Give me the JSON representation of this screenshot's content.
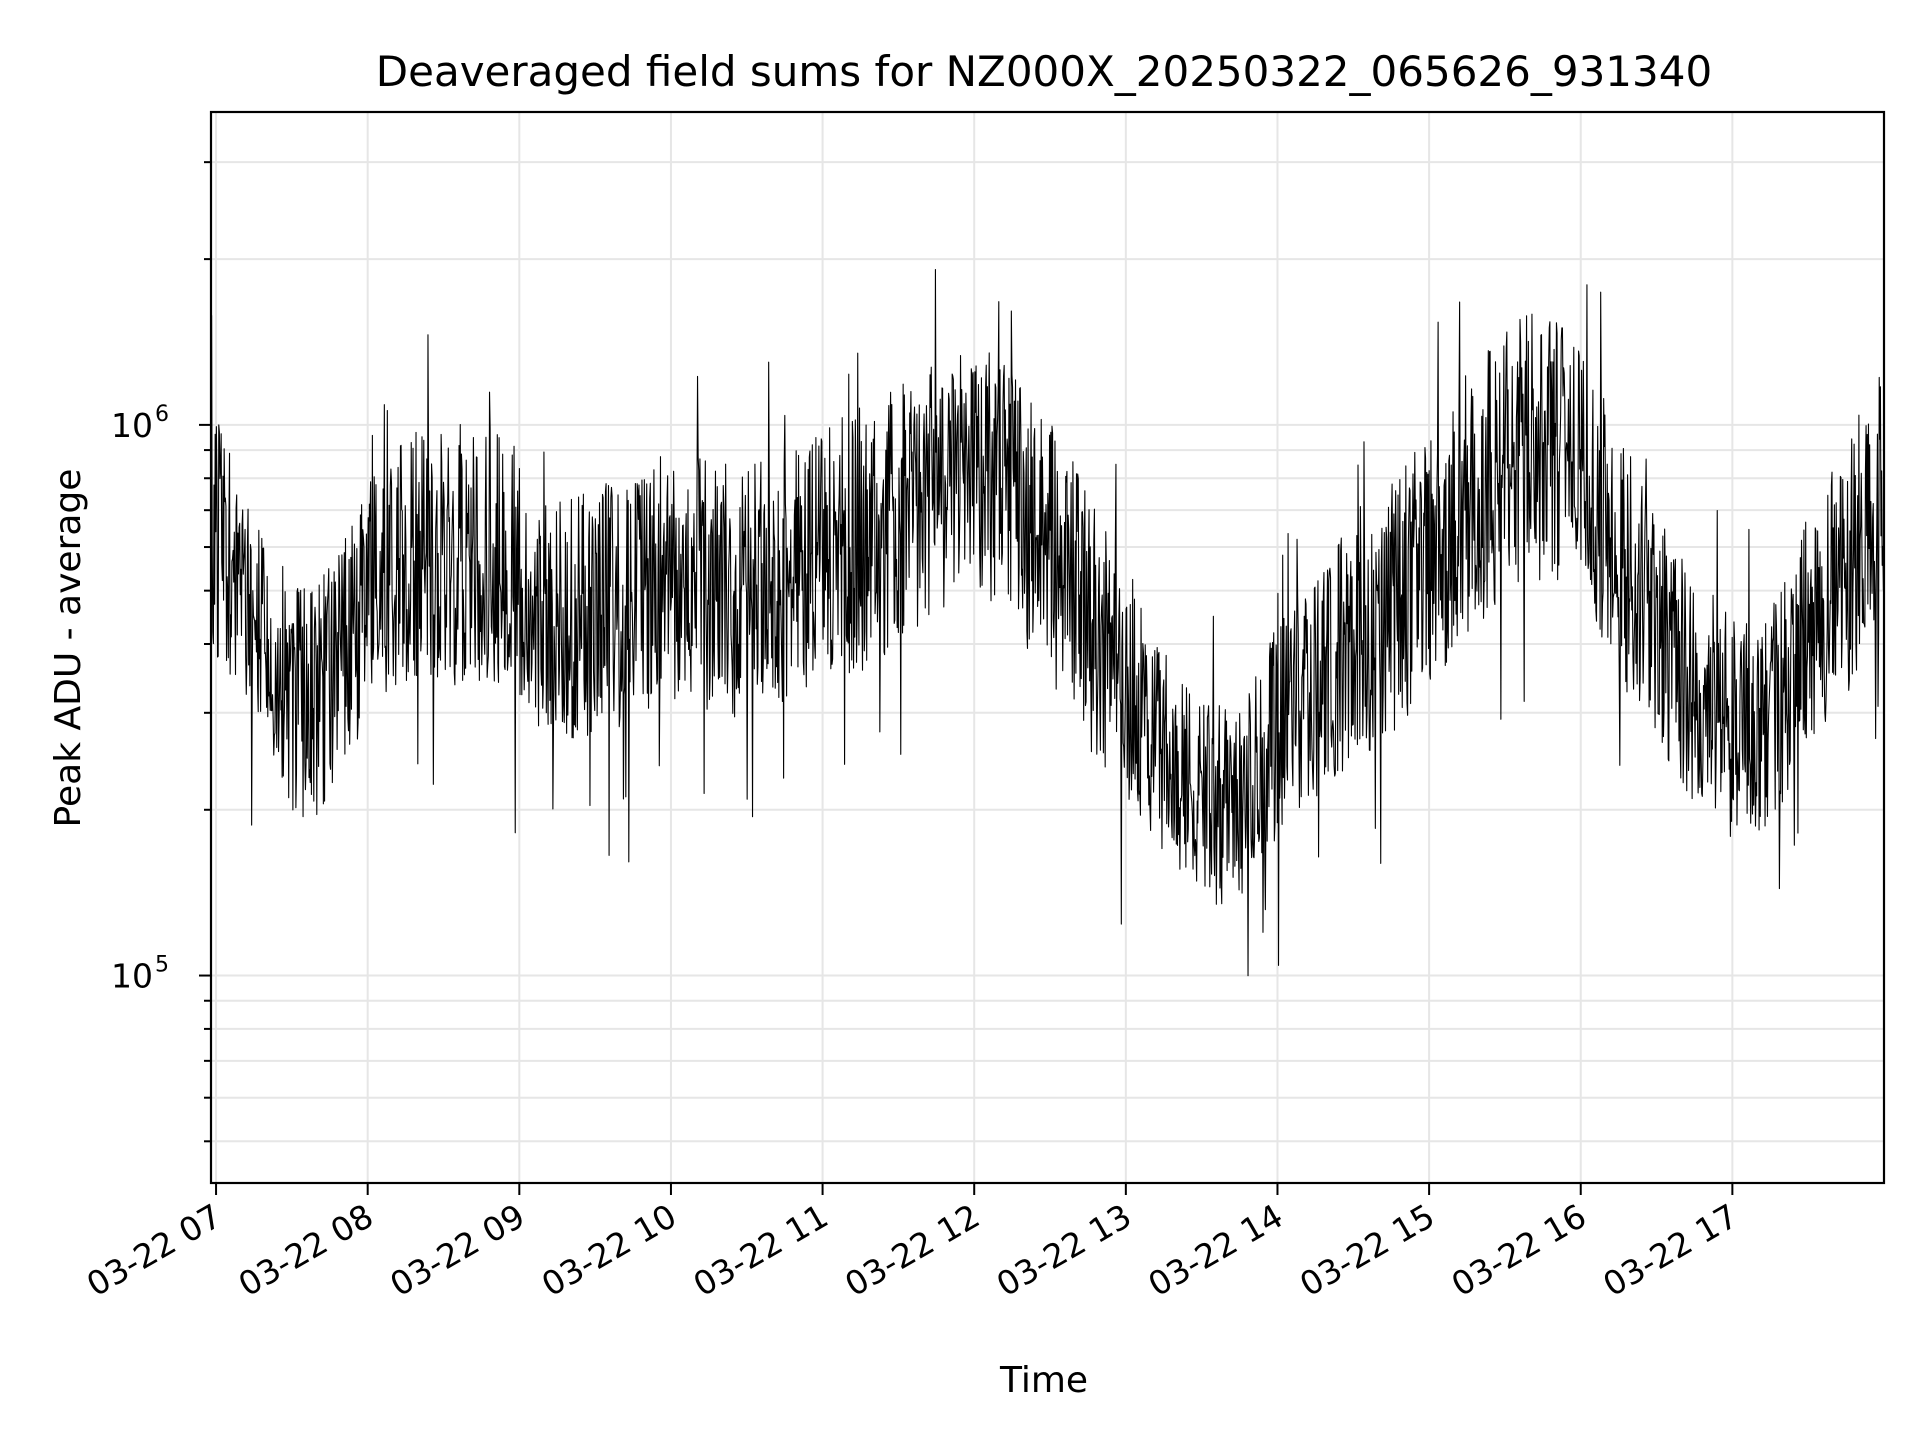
{
  "chart_data": {
    "type": "line",
    "title": "Deaveraged field sums for NZ000X_20250322_065626_931340",
    "xlabel": "Time",
    "ylabel": "Peak ADU - average",
    "yscale": "log",
    "ylim": [
      42000,
      3700000
    ],
    "xlim": [
      "2025-03-22 06:58",
      "2025-03-22 18:00"
    ],
    "grid": true,
    "legend": "none",
    "line_color": "#000000",
    "grid_color": "#e6e6e6",
    "x_ticks": [
      {
        "at": "2025-03-22 07:00",
        "label": "03-22 07"
      },
      {
        "at": "2025-03-22 08:00",
        "label": "03-22 08"
      },
      {
        "at": "2025-03-22 09:00",
        "label": "03-22 09"
      },
      {
        "at": "2025-03-22 10:00",
        "label": "03-22 10"
      },
      {
        "at": "2025-03-22 11:00",
        "label": "03-22 11"
      },
      {
        "at": "2025-03-22 12:00",
        "label": "03-22 12"
      },
      {
        "at": "2025-03-22 13:00",
        "label": "03-22 13"
      },
      {
        "at": "2025-03-22 14:00",
        "label": "03-22 14"
      },
      {
        "at": "2025-03-22 15:00",
        "label": "03-22 15"
      },
      {
        "at": "2025-03-22 16:00",
        "label": "03-22 16"
      },
      {
        "at": "2025-03-22 17:00",
        "label": "03-22 17"
      }
    ],
    "y_ticks": [
      {
        "value": 100000,
        "base": "10",
        "exponent": "5"
      },
      {
        "value": 1000000,
        "base": "10",
        "exponent": "6"
      }
    ],
    "series": [
      {
        "x": [
          "2025-03-22 06:58",
          "2025-03-22 07:10",
          "2025-03-22 07:20",
          "2025-03-22 07:30",
          "2025-03-22 07:40",
          "2025-03-22 07:50",
          "2025-03-22 08:00",
          "2025-03-22 08:15",
          "2025-03-22 08:30",
          "2025-03-22 08:45",
          "2025-03-22 09:00",
          "2025-03-22 09:10",
          "2025-03-22 09:20",
          "2025-03-22 09:30",
          "2025-03-22 09:45",
          "2025-03-22 10:00",
          "2025-03-22 10:15",
          "2025-03-22 10:30",
          "2025-03-22 10:45",
          "2025-03-22 11:00",
          "2025-03-22 11:15",
          "2025-03-22 11:30",
          "2025-03-22 11:45",
          "2025-03-22 12:00",
          "2025-03-22 12:15",
          "2025-03-22 12:30",
          "2025-03-22 12:45",
          "2025-03-22 13:00",
          "2025-03-22 13:10",
          "2025-03-22 13:20",
          "2025-03-22 13:30",
          "2025-03-22 13:40",
          "2025-03-22 13:50",
          "2025-03-22 14:00",
          "2025-03-22 14:15",
          "2025-03-22 14:30",
          "2025-03-22 14:45",
          "2025-03-22 15:00",
          "2025-03-22 15:15",
          "2025-03-22 15:30",
          "2025-03-22 15:45",
          "2025-03-22 16:00",
          "2025-03-22 16:15",
          "2025-03-22 16:30",
          "2025-03-22 16:45",
          "2025-03-22 17:00",
          "2025-03-22 17:10",
          "2025-03-22 17:20",
          "2025-03-22 17:30",
          "2025-03-22 17:45",
          "2025-03-22 18:00"
        ],
        "y": [
          650000,
          500000,
          400000,
          320000,
          300000,
          350000,
          420000,
          500000,
          520000,
          540000,
          500000,
          400000,
          380000,
          420000,
          460000,
          500000,
          470000,
          460000,
          500000,
          530000,
          560000,
          600000,
          650000,
          680000,
          620000,
          520000,
          400000,
          300000,
          250000,
          210000,
          190000,
          180000,
          200000,
          240000,
          300000,
          360000,
          420000,
          500000,
          600000,
          680000,
          740000,
          700000,
          500000,
          380000,
          300000,
          260000,
          250000,
          280000,
          380000,
          500000,
          650000
        ],
        "scatter_low": [
          0.45,
          0.55,
          0.55,
          0.5,
          0.5,
          0.55,
          0.55,
          0.55,
          0.5,
          0.5,
          0.5,
          0.55,
          0.55,
          0.5,
          0.5,
          0.5,
          0.5,
          0.5,
          0.5,
          0.5,
          0.5,
          0.5,
          0.55,
          0.6,
          0.55,
          0.5,
          0.5,
          0.55,
          0.6,
          0.6,
          0.6,
          0.6,
          0.6,
          0.6,
          0.55,
          0.55,
          0.5,
          0.5,
          0.55,
          0.55,
          0.55,
          0.55,
          0.55,
          0.55,
          0.55,
          0.55,
          0.55,
          0.6,
          0.55,
          0.5,
          0.5
        ],
        "scatter_high": [
          2.2,
          2.0,
          2.0,
          2.0,
          2.1,
          2.2,
          2.3,
          2.4,
          2.4,
          2.4,
          2.3,
          2.3,
          2.4,
          2.3,
          2.3,
          2.3,
          2.3,
          2.3,
          2.3,
          2.4,
          2.5,
          2.5,
          2.6,
          2.7,
          2.6,
          2.5,
          2.4,
          2.3,
          2.2,
          2.1,
          2.0,
          2.1,
          2.1,
          2.2,
          2.3,
          2.4,
          2.4,
          2.5,
          2.7,
          2.8,
          2.9,
          2.6,
          2.4,
          2.3,
          2.3,
          2.2,
          2.2,
          2.2,
          2.3,
          2.4,
          2.6
        ]
      }
    ]
  }
}
